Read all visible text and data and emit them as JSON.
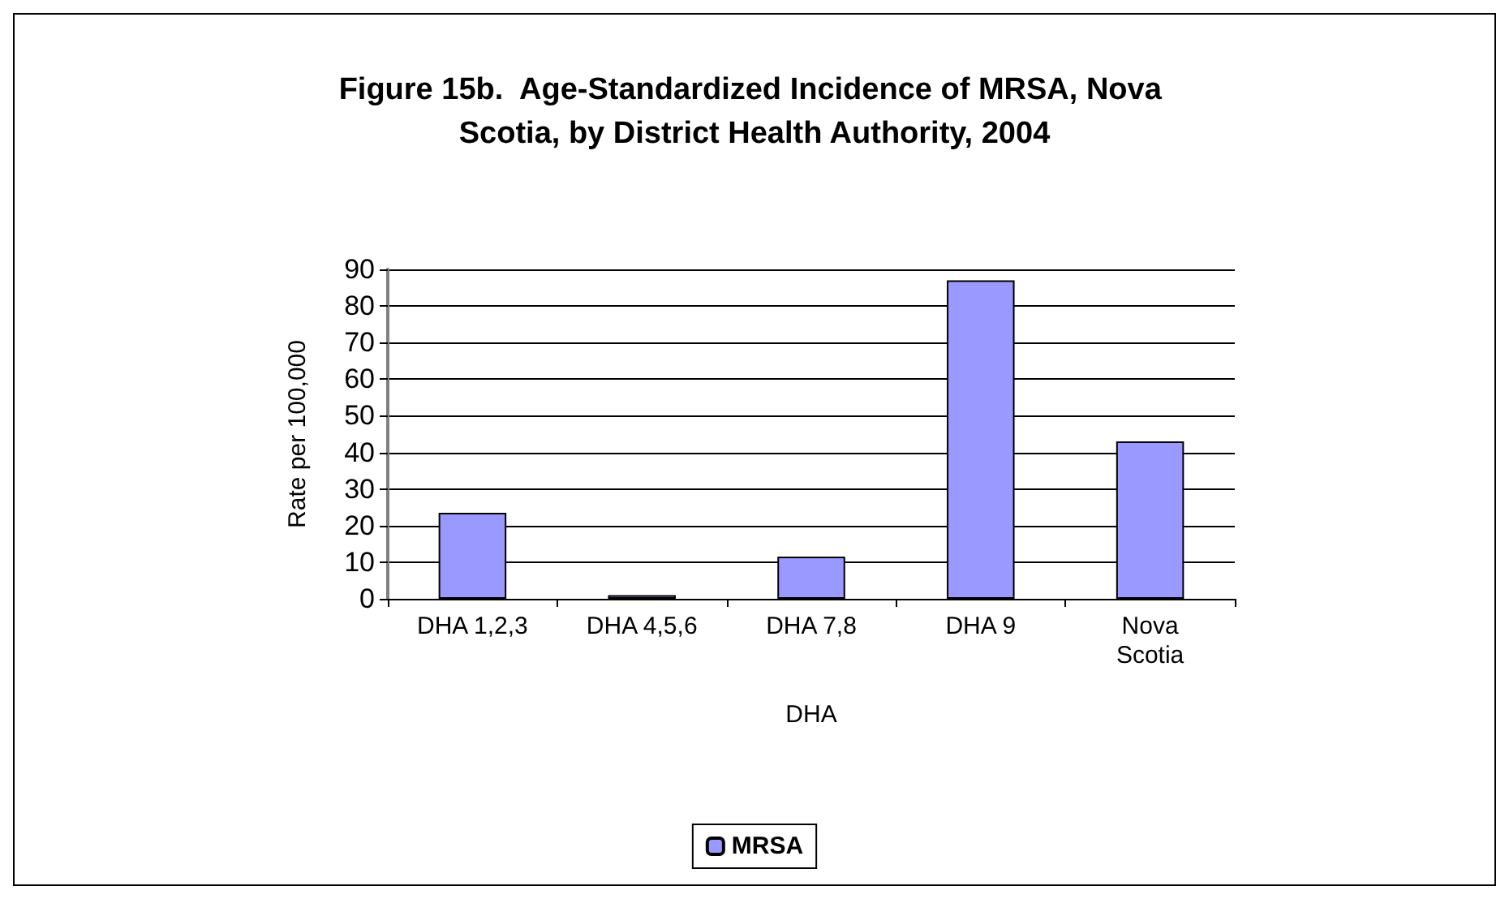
{
  "chart_data": {
    "type": "bar",
    "title": "Figure 15b.  Age-Standardized Incidence of MRSA, Nova Scotia, by District Health Authority, 2004",
    "categories": [
      "DHA 1,2,3",
      "DHA 4,5,6",
      "DHA 7,8",
      "DHA 9",
      "Nova\nScotia"
    ],
    "series": [
      {
        "name": "MRSA",
        "color": "#9999ff",
        "values": [
          23.5,
          1,
          11.5,
          87,
          43
        ]
      }
    ],
    "xlabel": "DHA",
    "ylabel": "Rate per 100,000",
    "ylim": [
      0,
      90
    ],
    "yticks": [
      0,
      10,
      20,
      30,
      40,
      50,
      60,
      70,
      80,
      90
    ],
    "grid": "y",
    "legend": "bottom"
  }
}
